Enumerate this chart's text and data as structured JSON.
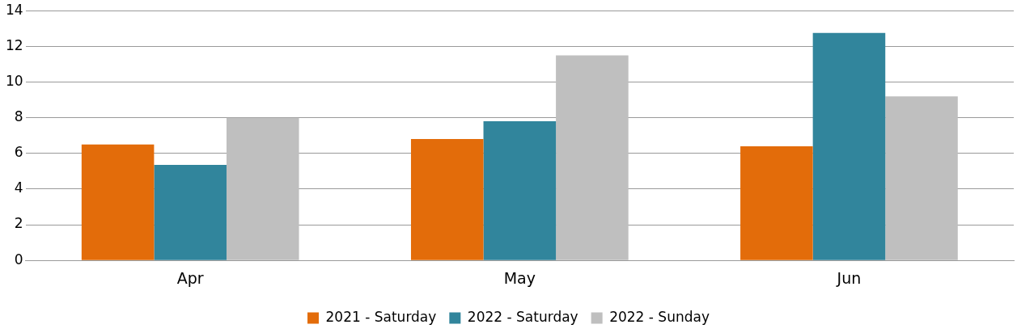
{
  "chart_data": {
    "type": "bar",
    "categories": [
      "Apr",
      "May",
      "Jun"
    ],
    "series": [
      {
        "name": "2021 - Saturday",
        "color": "#e36c0a",
        "values": [
          6.5,
          6.8,
          6.4
        ]
      },
      {
        "name": "2022 - Saturday",
        "color": "#31859c",
        "values": [
          5.35,
          7.8,
          12.75
        ]
      },
      {
        "name": "2022 - Sunday",
        "color": "#bfbfbf",
        "values": [
          8.0,
          11.5,
          9.2
        ]
      }
    ],
    "ylim": [
      0,
      14
    ],
    "yticks": [
      0,
      2,
      4,
      6,
      8,
      10,
      12,
      14
    ],
    "grid": "y",
    "legend": "bottom"
  }
}
